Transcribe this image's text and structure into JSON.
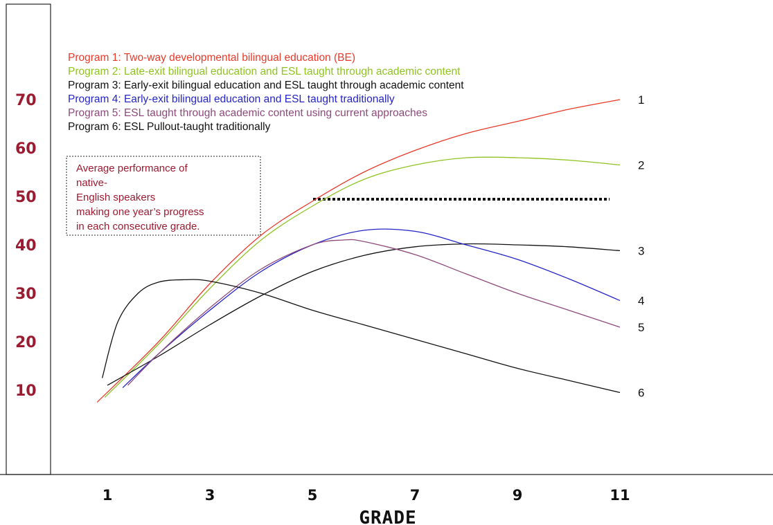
{
  "chart_data": {
    "type": "line",
    "title": "",
    "xlabel": "GRADE",
    "ylabel": "",
    "x_ticks": [
      "1",
      "3",
      "5",
      "7",
      "9",
      "11"
    ],
    "y_ticks": [
      "10",
      "20",
      "30",
      "40",
      "50",
      "60",
      "70"
    ],
    "xlim": [
      0,
      15
    ],
    "ylim": [
      0,
      82
    ],
    "legend": [
      {
        "text": "Program 1: Two-way developmental bilingual education (BE)",
        "color": "#e8392a"
      },
      {
        "text": "Program 2: Late-exit bilingual education and ESL taught through academic content",
        "color": "#8fc31f"
      },
      {
        "text": "Program 3: Early-exit bilingual education and ESL taught through academic content",
        "color": "#111111"
      },
      {
        "text": "Program 4: Early-exit bilingual education and ESL taught traditionally",
        "color": "#2424c8"
      },
      {
        "text": "Program 5: ESL taught through academic content using current approaches",
        "color": "#8e4a7a"
      },
      {
        "text": "Program 6: ESL Pullout-taught traditionally",
        "color": "#111111"
      }
    ],
    "reference_line": {
      "value": 51,
      "from_x": 5.5,
      "to_x": 11,
      "note": "Average performance of native-English speakers making one year’s progress in each consecutive grade."
    },
    "series": [
      {
        "label": "1",
        "color": "#e8392a",
        "points": [
          [
            0.8,
            7.5
          ],
          [
            2,
            20
          ],
          [
            3,
            32
          ],
          [
            4,
            42
          ],
          [
            5,
            49
          ],
          [
            6,
            55
          ],
          [
            7,
            59.5
          ],
          [
            8,
            63
          ],
          [
            9,
            65.5
          ],
          [
            10,
            68
          ],
          [
            11,
            70
          ]
        ]
      },
      {
        "label": "2",
        "color": "#8fc31f",
        "points": [
          [
            0.95,
            8.5
          ],
          [
            2,
            19.5
          ],
          [
            3,
            31
          ],
          [
            4,
            41
          ],
          [
            5,
            48
          ],
          [
            6,
            53.5
          ],
          [
            7,
            56.5
          ],
          [
            8,
            58
          ],
          [
            9,
            58
          ],
          [
            10,
            57.5
          ],
          [
            11,
            56.5
          ]
        ]
      },
      {
        "label": "3",
        "color": "#111111",
        "points": [
          [
            1,
            11
          ],
          [
            2,
            17
          ],
          [
            3,
            23.5
          ],
          [
            4,
            29.5
          ],
          [
            5,
            34.5
          ],
          [
            6,
            37.8
          ],
          [
            7,
            39.6
          ],
          [
            8,
            40.2
          ],
          [
            9,
            40
          ],
          [
            10,
            39.6
          ],
          [
            11,
            38.8
          ]
        ]
      },
      {
        "label": "4",
        "color": "#2424c8",
        "points": [
          [
            1.3,
            10.5
          ],
          [
            2,
            17.5
          ],
          [
            3,
            26.5
          ],
          [
            4,
            34.5
          ],
          [
            5,
            40
          ],
          [
            6,
            43
          ],
          [
            7,
            42.8
          ],
          [
            8,
            40
          ],
          [
            9,
            37
          ],
          [
            10,
            33
          ],
          [
            11,
            28.5
          ]
        ]
      },
      {
        "label": "5",
        "color": "#8e4a7a",
        "points": [
          [
            1.4,
            11
          ],
          [
            2,
            17.5
          ],
          [
            3,
            27
          ],
          [
            4,
            35
          ],
          [
            5,
            40
          ],
          [
            5.6,
            41
          ],
          [
            6,
            40.7
          ],
          [
            7,
            38
          ],
          [
            8,
            34
          ],
          [
            9,
            30
          ],
          [
            10,
            26.5
          ],
          [
            11,
            23
          ]
        ]
      },
      {
        "label": "6",
        "color": "#111111",
        "points": [
          [
            0.9,
            12.5
          ],
          [
            1.2,
            24
          ],
          [
            1.6,
            30
          ],
          [
            2,
            32.3
          ],
          [
            2.5,
            32.8
          ],
          [
            3,
            32.5
          ],
          [
            4,
            30
          ],
          [
            5,
            26.5
          ],
          [
            6,
            23.5
          ],
          [
            7,
            20.5
          ],
          [
            8,
            17.5
          ],
          [
            9,
            14.5
          ],
          [
            10,
            12
          ],
          [
            11,
            9.5
          ]
        ]
      }
    ]
  }
}
